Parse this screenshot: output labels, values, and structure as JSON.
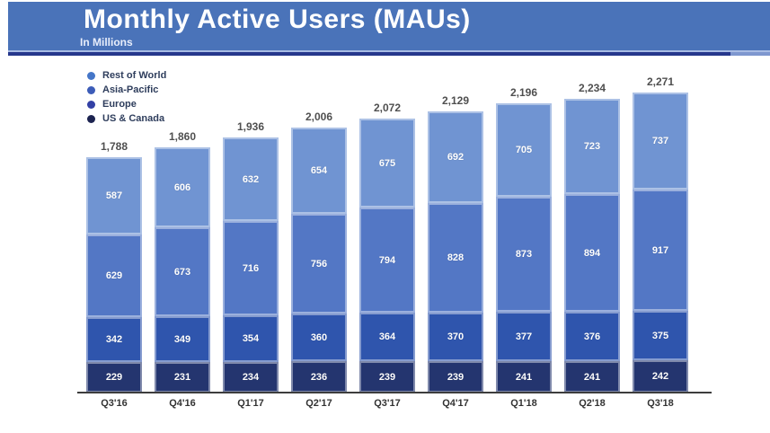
{
  "header": {
    "title": "Monthly Active Users (MAUs)",
    "subtitle": "In Millions"
  },
  "chart_data": {
    "type": "bar",
    "stacked": true,
    "title": "Monthly Active Users (MAUs)",
    "subtitle": "In Millions",
    "unit": "millions of users",
    "xlabel": "",
    "ylabel": "",
    "grid": false,
    "legend_position": "top-left",
    "ylim": [
      0,
      2400
    ],
    "categories": [
      "Q3'16",
      "Q4'16",
      "Q1'17",
      "Q2'17",
      "Q3'17",
      "Q4'17",
      "Q1'18",
      "Q2'18",
      "Q3'18"
    ],
    "totals": [
      "1,788",
      "1,860",
      "1,936",
      "2,006",
      "2,072",
      "2,129",
      "2,196",
      "2,234",
      "2,271"
    ],
    "series": [
      {
        "name": "US & Canada",
        "color": "#24356f",
        "legend_color": "#1c2350",
        "values": [
          229,
          231,
          234,
          236,
          239,
          239,
          241,
          241,
          242
        ]
      },
      {
        "name": "Europe",
        "color": "#2f55ad",
        "legend_color": "#3340a5",
        "values": [
          342,
          349,
          354,
          360,
          364,
          370,
          377,
          376,
          375
        ]
      },
      {
        "name": "Asia-Pacific",
        "color": "#5377c5",
        "legend_color": "#3c5cb8",
        "values": [
          629,
          673,
          716,
          756,
          794,
          828,
          873,
          894,
          917
        ]
      },
      {
        "name": "Rest of World",
        "color": "#7094d2",
        "legend_color": "#4576c8",
        "values": [
          587,
          606,
          632,
          654,
          675,
          692,
          705,
          723,
          737
        ]
      }
    ],
    "colors": {
      "header_band": "#4a73b9",
      "header_underline_dark": "#26378c",
      "header_underline_light": "#a9bce4",
      "axis_line": "#3d3d3d",
      "total_label_text": "#4f4f4f",
      "segment_value_text": "#ffffff"
    }
  }
}
